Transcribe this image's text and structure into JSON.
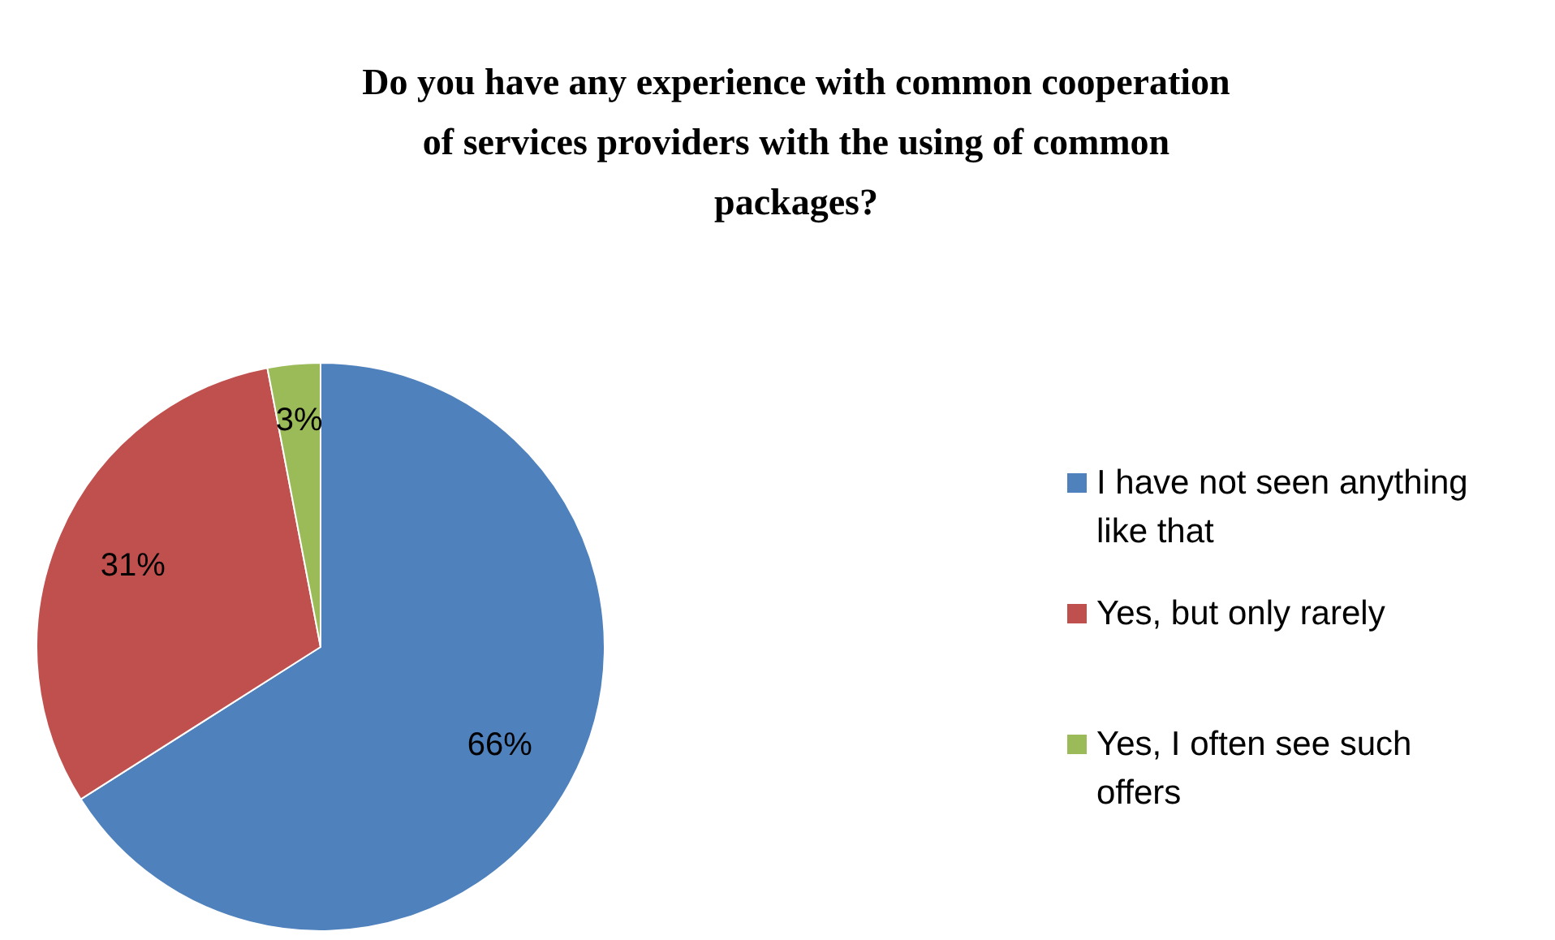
{
  "chart_data": {
    "type": "pie",
    "title": "Do you have any experience with common cooperation of services providers with the using of common packages?",
    "categories": [
      "I have not seen anything like that",
      "Yes, but only rarely",
      "Yes, I often see such offers"
    ],
    "values": [
      66,
      31,
      3
    ],
    "colors": [
      "#4f81bd",
      "#c0504d",
      "#9bbb59"
    ],
    "value_labels": [
      "66%",
      "31%",
      "3%"
    ],
    "legend": "right"
  }
}
